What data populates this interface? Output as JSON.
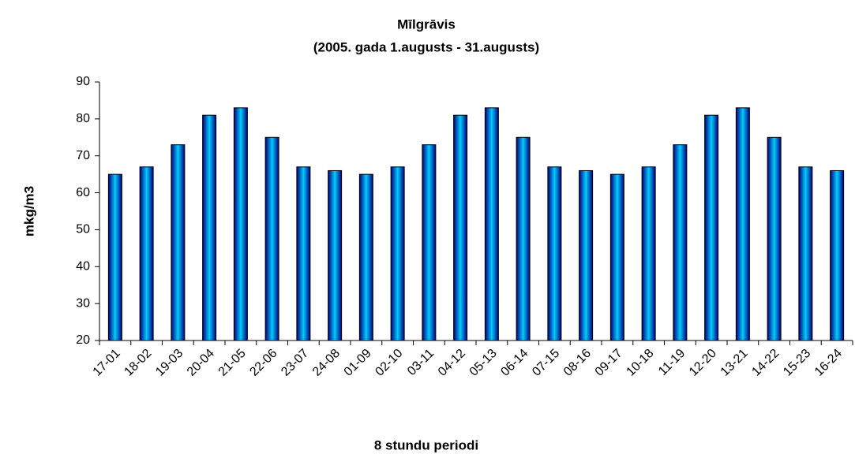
{
  "chart_data": {
    "type": "bar",
    "title": "Mīlgrāvis",
    "subtitle": "(2005. gada 1.augusts  - 31.augusts)",
    "x_label": "8 stundu periodi",
    "y_label": "mkg/m3",
    "categories": [
      "17-01",
      "18-02",
      "19-03",
      "20-04",
      "21-05",
      "22-06",
      "23-07",
      "24-08",
      "01-09",
      "02-10",
      "03-11",
      "04-12",
      "05-13",
      "06-14",
      "07-15",
      "08-16",
      "09-17",
      "10-18",
      "11-19",
      "12-20",
      "13-21",
      "14-22",
      "15-23",
      "16-24"
    ],
    "values": [
      65,
      67,
      73,
      81,
      83,
      75,
      67,
      66,
      65,
      67,
      73,
      81,
      83,
      75,
      67,
      66,
      65,
      67,
      73,
      81,
      83,
      75,
      67,
      66
    ],
    "ylim": [
      20,
      90
    ],
    "yticks": [
      20,
      30,
      40,
      50,
      60,
      70,
      80,
      90
    ],
    "grid": false
  }
}
